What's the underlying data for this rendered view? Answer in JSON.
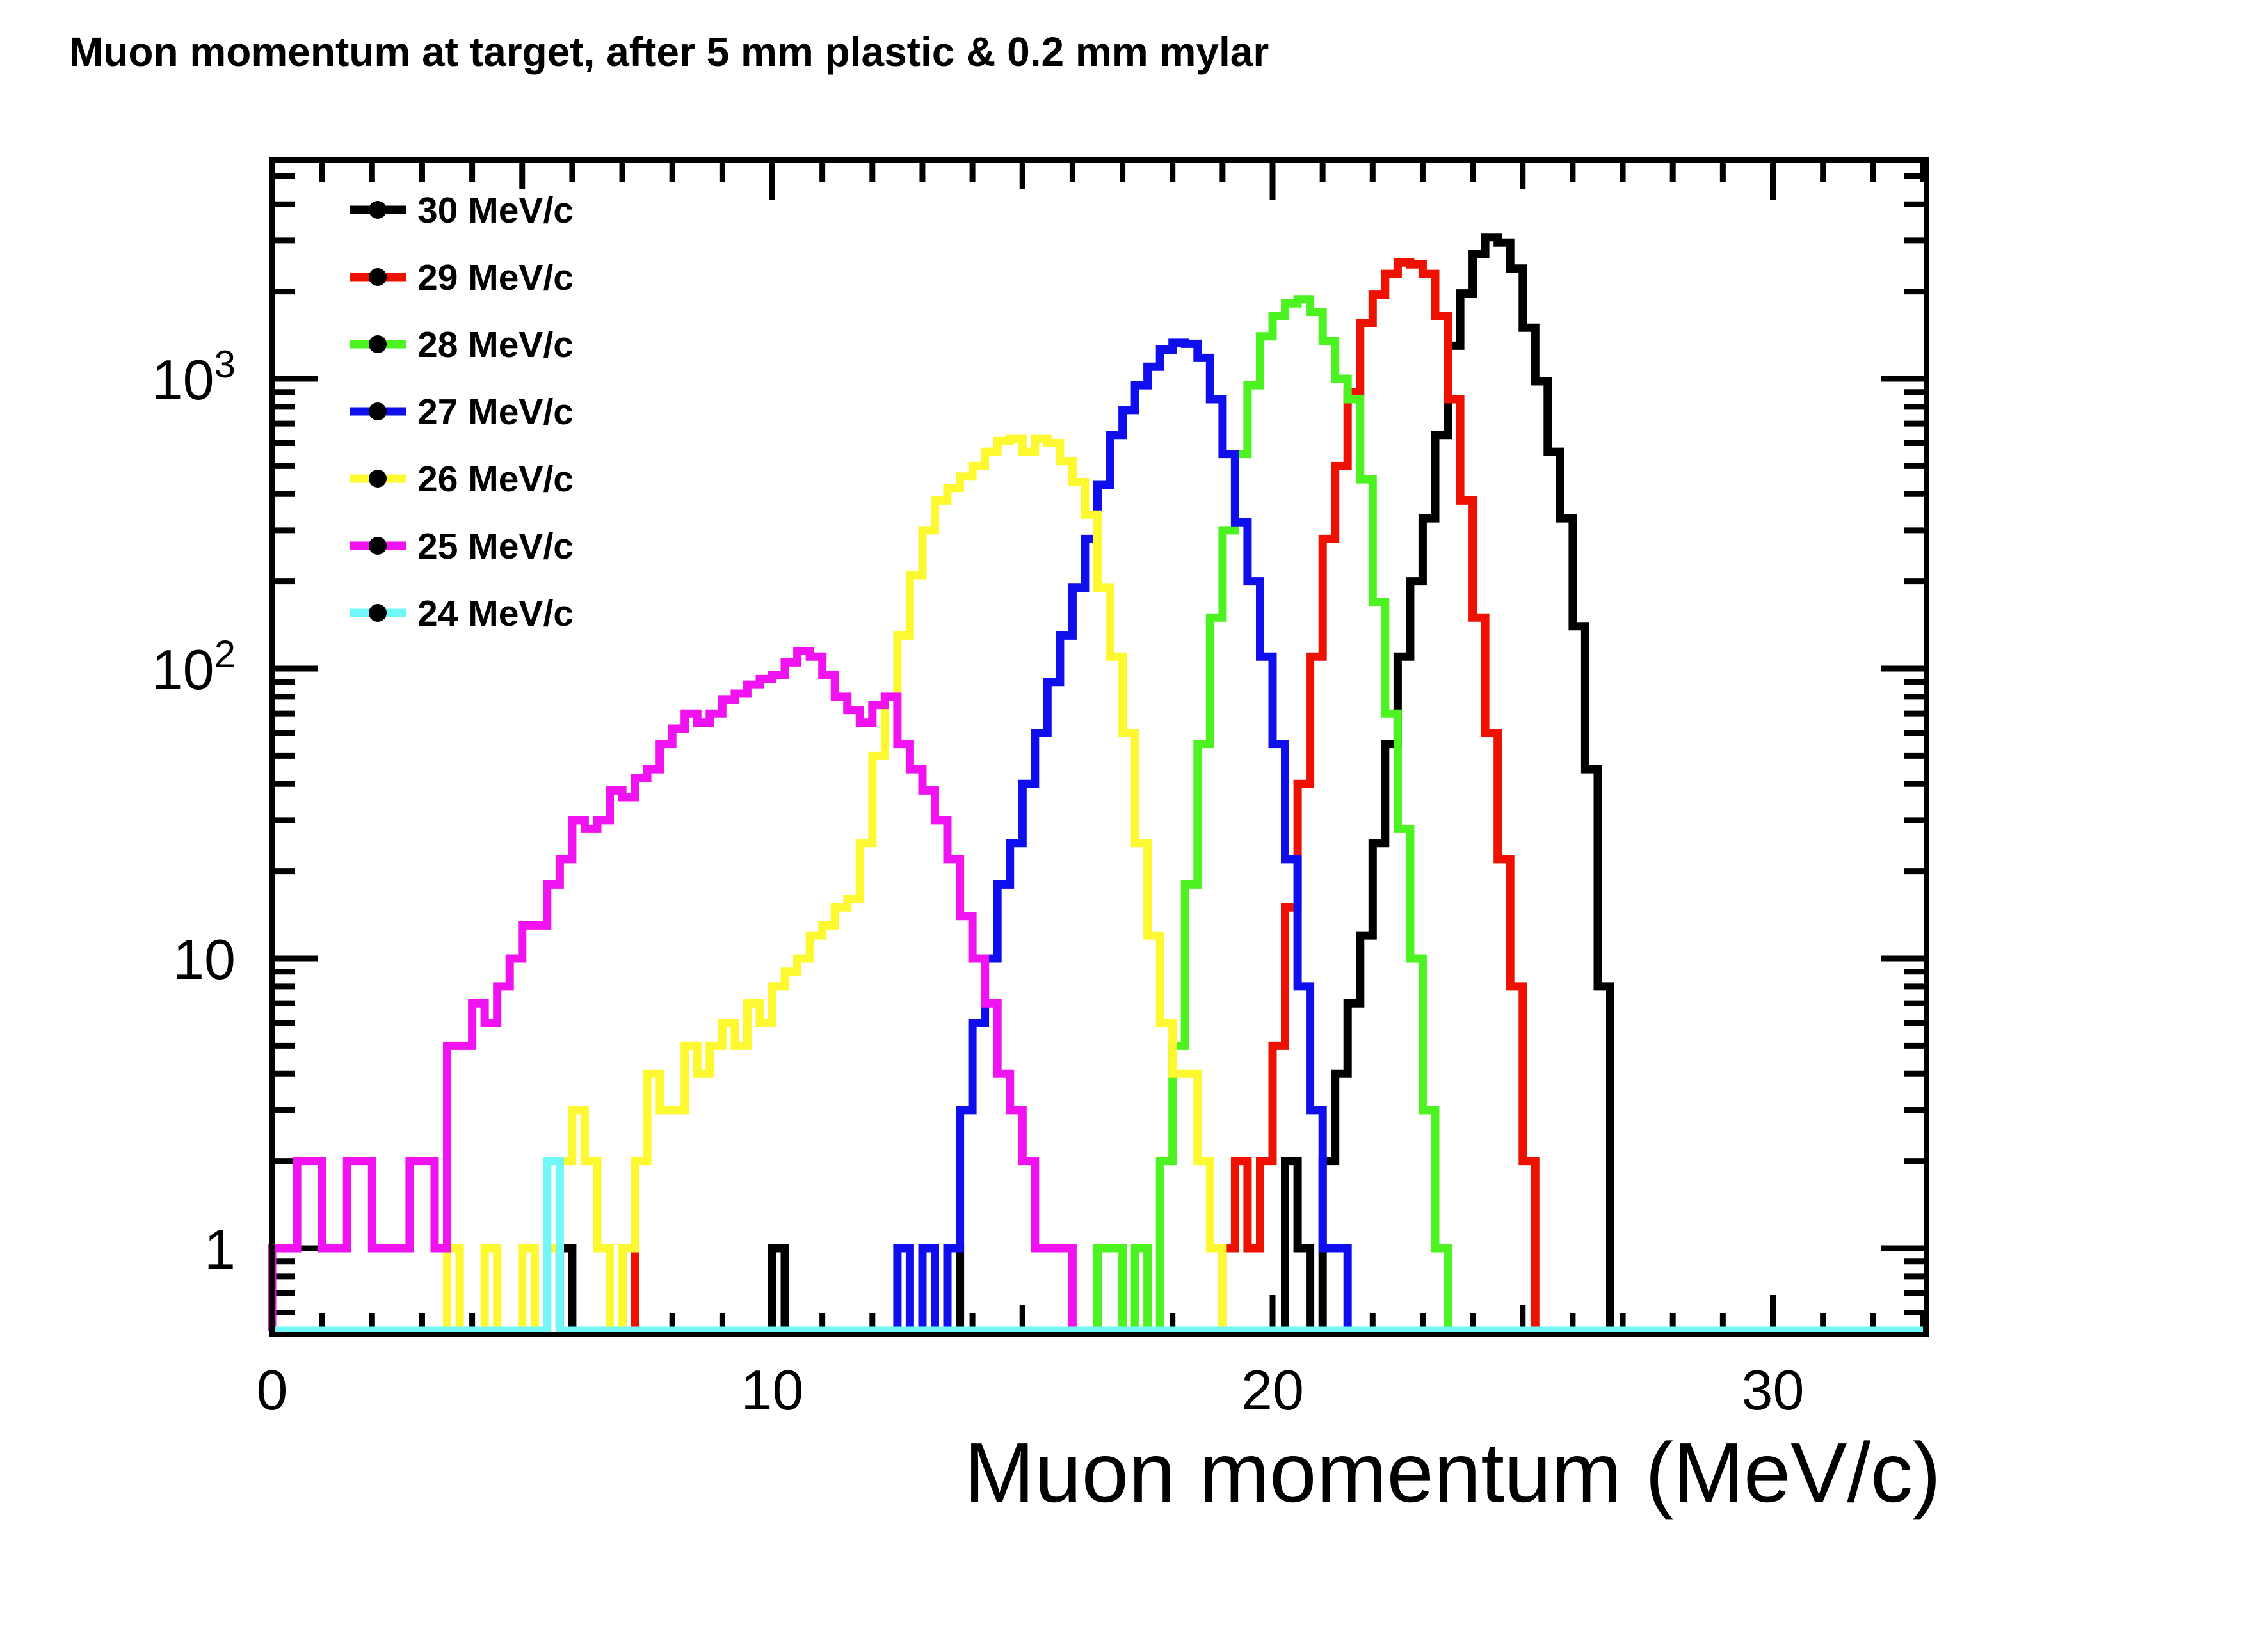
{
  "chart_data": {
    "type": "step-histogram",
    "title": "Muon momentum at target, after 5 mm plastic & 0.2 mm mylar",
    "xlabel": "Muon momentum (MeV/c)",
    "ylabel": "",
    "x_axis": {
      "range": [
        0,
        33.1
      ],
      "major_ticks": [
        0,
        10,
        20,
        30
      ],
      "major_tick_labels": [
        "0",
        "10",
        "20",
        "30"
      ],
      "medium_ticks": [
        5,
        15,
        25
      ],
      "minor_tick_step": 1,
      "grid": false
    },
    "y_axis": {
      "scale": "log",
      "range": [
        0.5,
        5700
      ],
      "major_ticks": [
        1,
        10,
        100,
        1000
      ],
      "major_tick_labels": [
        {
          "base": "1",
          "exp": ""
        },
        {
          "base": "10",
          "exp": ""
        },
        {
          "base": "10",
          "exp": "2"
        },
        {
          "base": "10",
          "exp": "3"
        }
      ],
      "minor_ticks": [
        0.6,
        0.7,
        0.8,
        0.9,
        2,
        3,
        4,
        5,
        6,
        7,
        8,
        9,
        20,
        30,
        40,
        50,
        60,
        70,
        80,
        90,
        200,
        300,
        400,
        500,
        600,
        700,
        800,
        900,
        2000,
        3000,
        4000,
        5000
      ],
      "grid": false
    },
    "bin_width": 0.25,
    "legend": {
      "position": "top-left",
      "marker": "filled-circle",
      "marker_color": "#000000"
    },
    "series": [
      {
        "name": "30 MeV/c",
        "color": "#000000",
        "peak_x": 24.3,
        "peak_count": 3080,
        "bins": [
          [
            5.75,
            1
          ],
          [
            10,
            1
          ],
          [
            13.5,
            1
          ],
          [
            20.25,
            2
          ],
          [
            20.5,
            1
          ],
          [
            21,
            2
          ],
          [
            21.25,
            4
          ],
          [
            21.5,
            7
          ],
          [
            21.75,
            12
          ],
          [
            22,
            25
          ],
          [
            22.25,
            55
          ],
          [
            22.5,
            110
          ],
          [
            22.75,
            200
          ],
          [
            23,
            330
          ],
          [
            23.25,
            640
          ],
          [
            23.5,
            1300
          ],
          [
            23.75,
            1970
          ],
          [
            24,
            2700
          ],
          [
            24.25,
            3080
          ],
          [
            24.5,
            2950
          ],
          [
            24.75,
            2400
          ],
          [
            25,
            1500
          ],
          [
            25.25,
            980
          ],
          [
            25.5,
            560
          ],
          [
            25.75,
            330
          ],
          [
            26,
            140
          ],
          [
            26.25,
            45
          ],
          [
            26.5,
            8
          ]
        ]
      },
      {
        "name": "29 MeV/c",
        "color": "#ee1100",
        "peak_x": 22.6,
        "peak_count": 2520,
        "bins": [
          [
            7,
            1
          ],
          [
            19,
            1
          ],
          [
            19.25,
            2
          ],
          [
            19.5,
            1
          ],
          [
            19.75,
            2
          ],
          [
            20,
            5
          ],
          [
            20.25,
            15
          ],
          [
            20.5,
            40
          ],
          [
            20.75,
            110
          ],
          [
            21,
            280
          ],
          [
            21.25,
            500
          ],
          [
            21.5,
            900
          ],
          [
            21.75,
            1560
          ],
          [
            22,
            1950
          ],
          [
            22.25,
            2300
          ],
          [
            22.5,
            2520
          ],
          [
            22.75,
            2480
          ],
          [
            23,
            2300
          ],
          [
            23.25,
            1650
          ],
          [
            23.5,
            850
          ],
          [
            23.75,
            380
          ],
          [
            24,
            150
          ],
          [
            24.25,
            60
          ],
          [
            24.5,
            22
          ],
          [
            24.75,
            8
          ],
          [
            25,
            2
          ]
        ]
      },
      {
        "name": "28 MeV/c",
        "color": "#4df321",
        "peak_x": 20.6,
        "peak_count": 1880,
        "bins": [
          [
            16.5,
            1
          ],
          [
            16.75,
            1
          ],
          [
            17.25,
            1
          ],
          [
            17.75,
            2
          ],
          [
            18,
            5
          ],
          [
            18.25,
            18
          ],
          [
            18.5,
            55
          ],
          [
            18.75,
            150
          ],
          [
            19,
            300
          ],
          [
            19.25,
            550
          ],
          [
            19.5,
            950
          ],
          [
            19.75,
            1400
          ],
          [
            20,
            1650
          ],
          [
            20.25,
            1820
          ],
          [
            20.5,
            1880
          ],
          [
            20.75,
            1700
          ],
          [
            21,
            1350
          ],
          [
            21.25,
            1000
          ],
          [
            21.5,
            850
          ],
          [
            21.75,
            450
          ],
          [
            22,
            170
          ],
          [
            22.25,
            70
          ],
          [
            22.5,
            28
          ],
          [
            22.75,
            10
          ],
          [
            23,
            3
          ],
          [
            23.25,
            1
          ]
        ]
      },
      {
        "name": "27 MeV/c",
        "color": "#0f0fee",
        "peak_x": 18.1,
        "peak_count": 1330,
        "bins": [
          [
            12.5,
            1
          ],
          [
            13,
            1
          ],
          [
            13.5,
            1
          ],
          [
            13.75,
            3
          ],
          [
            14,
            6
          ],
          [
            14.25,
            10
          ],
          [
            14.5,
            18
          ],
          [
            14.75,
            25
          ],
          [
            15,
            40
          ],
          [
            15.25,
            60
          ],
          [
            15.5,
            90
          ],
          [
            15.75,
            130
          ],
          [
            16,
            190
          ],
          [
            16.25,
            280
          ],
          [
            16.5,
            430
          ],
          [
            16.75,
            640
          ],
          [
            17,
            780
          ],
          [
            17.25,
            950
          ],
          [
            17.5,
            1100
          ],
          [
            17.75,
            1260
          ],
          [
            18,
            1330
          ],
          [
            18.25,
            1320
          ],
          [
            18.5,
            1180
          ],
          [
            18.75,
            850
          ],
          [
            19,
            550
          ],
          [
            19.25,
            320
          ],
          [
            19.5,
            200
          ],
          [
            19.75,
            110
          ],
          [
            20,
            55
          ],
          [
            20.25,
            22
          ],
          [
            20.5,
            8
          ],
          [
            20.75,
            3
          ],
          [
            21,
            1
          ],
          [
            21.25,
            1
          ]
        ]
      },
      {
        "name": "26 MeV/c",
        "color": "#fdf830",
        "peak_x": 15.0,
        "peak_count": 620,
        "bins": [
          [
            3.5,
            1
          ],
          [
            4.25,
            1
          ],
          [
            5,
            1
          ],
          [
            5.5,
            1
          ],
          [
            5.75,
            2
          ],
          [
            6,
            3
          ],
          [
            6.25,
            2
          ],
          [
            6.5,
            1
          ],
          [
            7,
            1
          ],
          [
            7.25,
            2
          ],
          [
            7.5,
            4
          ],
          [
            7.75,
            3
          ],
          [
            8,
            3
          ],
          [
            8.25,
            5
          ],
          [
            8.5,
            4
          ],
          [
            8.75,
            5
          ],
          [
            9,
            6
          ],
          [
            9.25,
            5
          ],
          [
            9.5,
            7
          ],
          [
            9.75,
            6
          ],
          [
            10,
            8
          ],
          [
            10.25,
            9
          ],
          [
            10.5,
            10
          ],
          [
            10.75,
            12
          ],
          [
            11,
            13
          ],
          [
            11.25,
            15
          ],
          [
            11.5,
            16
          ],
          [
            11.75,
            25
          ],
          [
            12,
            50
          ],
          [
            12.25,
            80
          ],
          [
            12.5,
            130
          ],
          [
            12.75,
            210
          ],
          [
            13,
            300
          ],
          [
            13.25,
            380
          ],
          [
            13.5,
            420
          ],
          [
            13.75,
            460
          ],
          [
            14,
            500
          ],
          [
            14.25,
            560
          ],
          [
            14.5,
            610
          ],
          [
            14.75,
            620
          ],
          [
            15,
            560
          ],
          [
            15.25,
            620
          ],
          [
            15.5,
            600
          ],
          [
            15.75,
            520
          ],
          [
            16,
            440
          ],
          [
            16.25,
            340
          ],
          [
            16.5,
            190
          ],
          [
            16.75,
            110
          ],
          [
            17,
            60
          ],
          [
            17.25,
            25
          ],
          [
            17.5,
            12
          ],
          [
            17.75,
            6
          ],
          [
            18,
            4
          ],
          [
            18.25,
            4
          ],
          [
            18.5,
            2
          ],
          [
            18.75,
            1
          ]
        ]
      },
      {
        "name": "25 MeV/c",
        "color": "#f012f0",
        "peak_x": 10.5,
        "peak_count": 115,
        "bins": [
          [
            0,
            1
          ],
          [
            0.25,
            1
          ],
          [
            0.5,
            2
          ],
          [
            0.75,
            2
          ],
          [
            1,
            1
          ],
          [
            1.25,
            1
          ],
          [
            1.5,
            2
          ],
          [
            1.75,
            2
          ],
          [
            2,
            1
          ],
          [
            2.25,
            1
          ],
          [
            2.5,
            1
          ],
          [
            2.75,
            2
          ],
          [
            3,
            2
          ],
          [
            3.25,
            1
          ],
          [
            3.5,
            5
          ],
          [
            3.75,
            5
          ],
          [
            4,
            7
          ],
          [
            4.25,
            6
          ],
          [
            4.5,
            8
          ],
          [
            4.75,
            10
          ],
          [
            5,
            13
          ],
          [
            5.25,
            13
          ],
          [
            5.5,
            18
          ],
          [
            5.75,
            22
          ],
          [
            6,
            30
          ],
          [
            6.25,
            28
          ],
          [
            6.5,
            30
          ],
          [
            6.75,
            38
          ],
          [
            7,
            36
          ],
          [
            7.25,
            42
          ],
          [
            7.5,
            45
          ],
          [
            7.75,
            55
          ],
          [
            8,
            62
          ],
          [
            8.25,
            70
          ],
          [
            8.5,
            65
          ],
          [
            8.75,
            70
          ],
          [
            9,
            78
          ],
          [
            9.25,
            82
          ],
          [
            9.5,
            88
          ],
          [
            9.75,
            92
          ],
          [
            10,
            95
          ],
          [
            10.25,
            105
          ],
          [
            10.5,
            115
          ],
          [
            10.75,
            110
          ],
          [
            11,
            95
          ],
          [
            11.25,
            80
          ],
          [
            11.5,
            72
          ],
          [
            11.75,
            65
          ],
          [
            12,
            75
          ],
          [
            12.25,
            80
          ],
          [
            12.5,
            55
          ],
          [
            12.75,
            45
          ],
          [
            13,
            38
          ],
          [
            13.25,
            30
          ],
          [
            13.5,
            22
          ],
          [
            13.75,
            14
          ],
          [
            14,
            10
          ],
          [
            14.25,
            7
          ],
          [
            14.5,
            4
          ],
          [
            14.75,
            3
          ],
          [
            15,
            2
          ],
          [
            15.25,
            1
          ],
          [
            15.5,
            1
          ],
          [
            15.75,
            1
          ]
        ]
      },
      {
        "name": "24 MeV/c",
        "color": "#70f8f8",
        "peak_x": 5.5,
        "peak_count": 2,
        "baseline_full_width": true,
        "bins": [
          [
            0,
            0
          ],
          [
            5.5,
            2
          ],
          [
            32.75,
            0
          ]
        ]
      }
    ]
  }
}
